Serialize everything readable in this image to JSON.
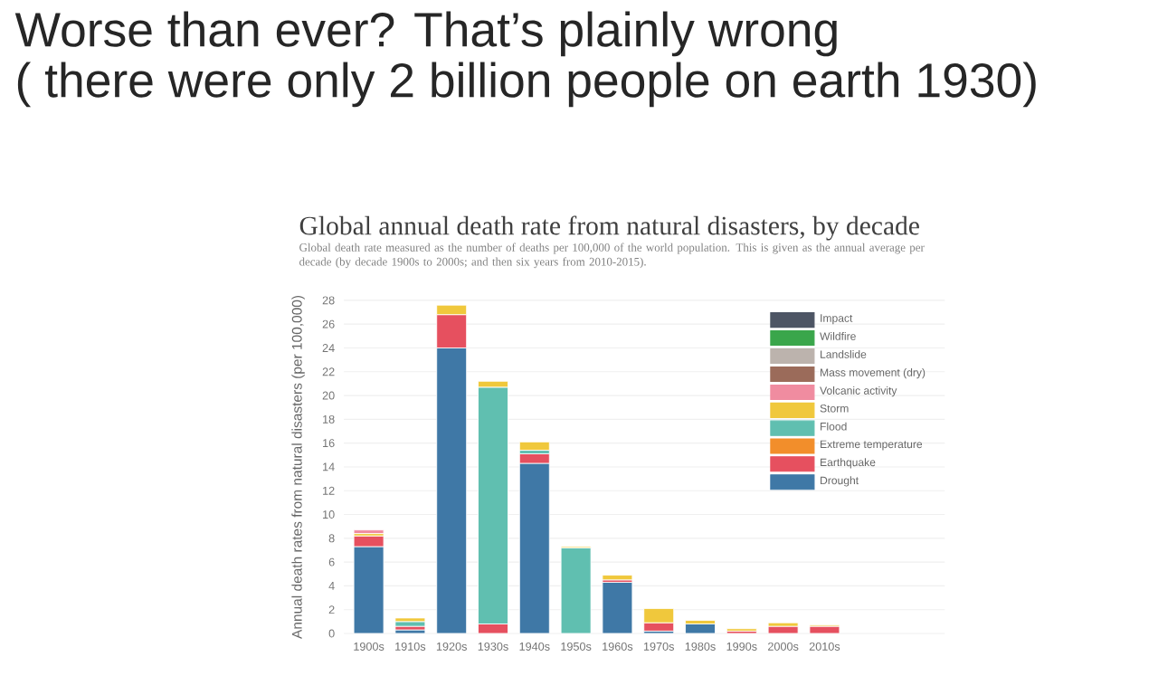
{
  "chart_data": {
    "type": "bar",
    "stacked": true,
    "title": "Global annual death rate from natural disasters, by decade",
    "subtitle": "Global death rate measured as the number of deaths per 100,000 of the world population. This is given as the annual average per decade (by decade 1900s to 2000s; and then six years from 2010-2015).",
    "ylabel": "Annual death rates from natural disasters (per 100,000)",
    "annotations": [
      "Worse than ever? That’s plainly wrong",
      "( there were only 2 billion people on earth 1930)"
    ],
    "categories": [
      "1900s",
      "1910s",
      "1920s",
      "1930s",
      "1940s",
      "1950s",
      "1960s",
      "1970s",
      "1980s",
      "1990s",
      "2000s",
      "2010s"
    ],
    "series": [
      {
        "name": "Drought",
        "color": "#3f78a6",
        "values": [
          7.3,
          0.3,
          24.0,
          null,
          14.3,
          null,
          4.3,
          0.2,
          0.8,
          null,
          null,
          null
        ]
      },
      {
        "name": "Earthquake",
        "color": "#e6505f",
        "values": [
          0.9,
          0.3,
          2.8,
          0.8,
          0.8,
          null,
          0.2,
          0.7,
          null,
          0.2,
          0.6,
          0.6
        ]
      },
      {
        "name": "Extreme temperature",
        "color": "#f28e2b",
        "values": [
          null,
          null,
          null,
          null,
          null,
          null,
          null,
          null,
          null,
          null,
          null,
          null
        ]
      },
      {
        "name": "Flood",
        "color": "#60bfb0",
        "values": [
          null,
          0.4,
          null,
          19.9,
          0.3,
          7.2,
          null,
          null,
          null,
          null,
          null,
          null
        ]
      },
      {
        "name": "Storm",
        "color": "#f0c83c",
        "values": [
          0.2,
          0.3,
          0.8,
          0.5,
          0.7,
          0.1,
          0.4,
          1.2,
          0.3,
          0.2,
          0.3,
          0.1
        ]
      },
      {
        "name": "Volcanic activity",
        "color": "#f08ca0",
        "values": [
          0.3,
          null,
          null,
          null,
          null,
          null,
          null,
          null,
          null,
          null,
          null,
          null
        ]
      },
      {
        "name": "Mass movement (dry)",
        "color": "#9b6b5a",
        "values": [
          null,
          null,
          null,
          null,
          null,
          null,
          null,
          null,
          null,
          null,
          null,
          null
        ]
      },
      {
        "name": "Landslide",
        "color": "#bcb3ad",
        "values": [
          null,
          null,
          null,
          null,
          null,
          null,
          null,
          null,
          null,
          null,
          null,
          null
        ]
      },
      {
        "name": "Wildfire",
        "color": "#3aa64b",
        "values": [
          null,
          null,
          null,
          null,
          null,
          null,
          null,
          null,
          null,
          null,
          null,
          null
        ]
      },
      {
        "name": "Impact",
        "color": "#4d5564",
        "values": [
          null,
          null,
          null,
          null,
          null,
          null,
          null,
          null,
          null,
          null,
          null,
          null
        ]
      }
    ],
    "ylim": [
      0,
      28
    ],
    "yticks": [
      0,
      2,
      4,
      6,
      8,
      10,
      12,
      14,
      16,
      18,
      20,
      22,
      24,
      26,
      28
    ],
    "grid": "y",
    "legend": "top right"
  }
}
